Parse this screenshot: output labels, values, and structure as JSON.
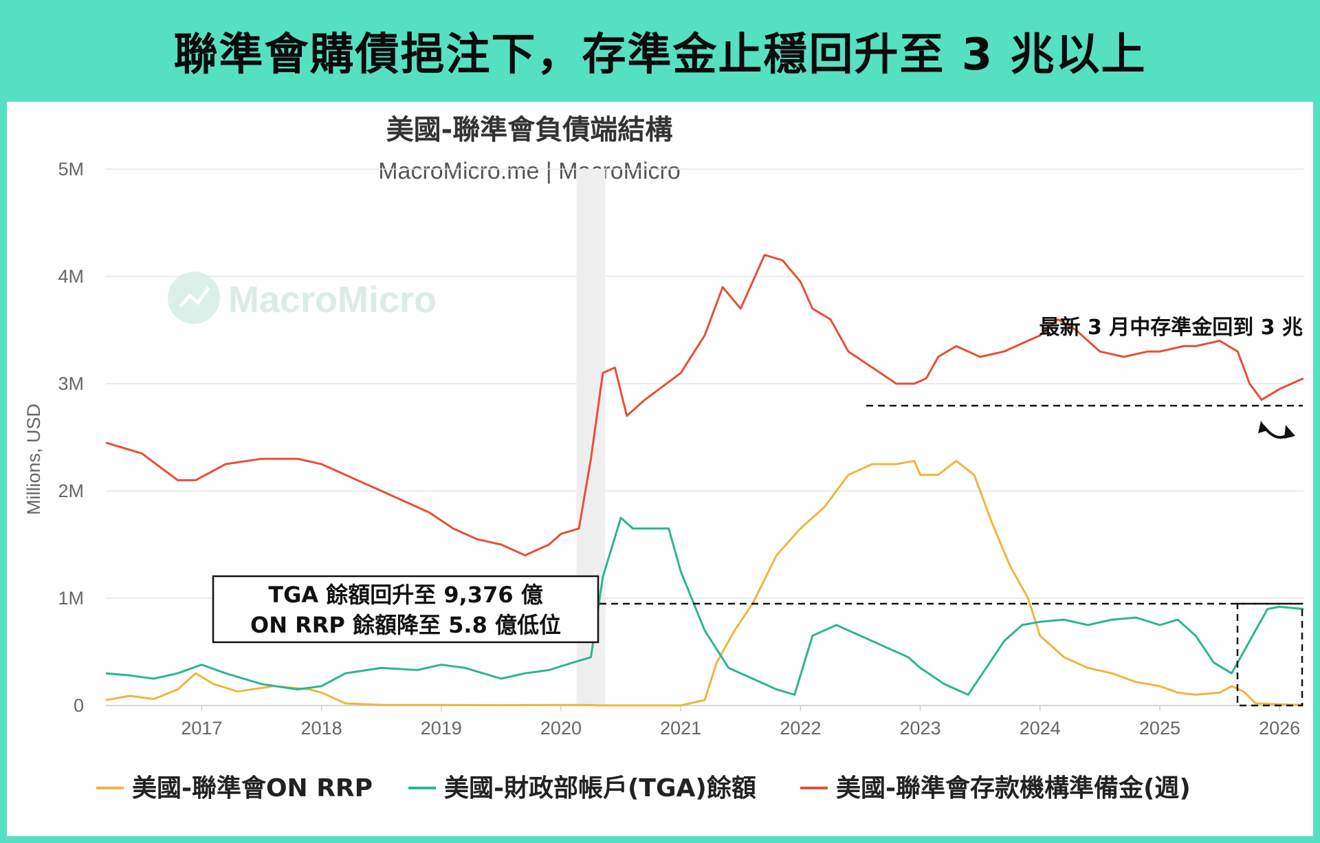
{
  "banner_title": "聯準會購債挹注下，存準金止穩回升至 3 兆以上",
  "chart_data": {
    "type": "line",
    "title": "美國-聯準會負債端結構",
    "subtitle": "MacroMicro.me | MacroMicro",
    "watermark": "MacroMicro",
    "ylabel": "Millions, USD",
    "ylim": [
      0,
      5000000
    ],
    "y_ticks": [
      {
        "value": 0,
        "label": "0"
      },
      {
        "value": 1000000,
        "label": "1M"
      },
      {
        "value": 2000000,
        "label": "2M"
      },
      {
        "value": 3000000,
        "label": "3M"
      },
      {
        "value": 4000000,
        "label": "4M"
      },
      {
        "value": 5000000,
        "label": "5M"
      }
    ],
    "xlim": [
      2016.2,
      2026.2
    ],
    "x_ticks": [
      "2017",
      "2018",
      "2019",
      "2020",
      "2021",
      "2022",
      "2023",
      "2024",
      "2025",
      "2026"
    ],
    "recession_band": [
      2020.13,
      2020.37
    ],
    "grid": "horizontal",
    "legend_position": "bottom",
    "series": [
      {
        "name": "美國-聯準會ON RRP",
        "color": "#f2b43c",
        "x": [
          2016.2,
          2016.4,
          2016.6,
          2016.8,
          2016.95,
          2017.1,
          2017.3,
          2017.6,
          2017.9,
          2018.0,
          2018.2,
          2018.5,
          2019.0,
          2019.5,
          2020.0,
          2020.2,
          2020.3,
          2020.5,
          2021.0,
          2021.2,
          2021.3,
          2021.45,
          2021.6,
          2021.8,
          2022.0,
          2022.2,
          2022.4,
          2022.6,
          2022.8,
          2022.95,
          2023.0,
          2023.15,
          2023.3,
          2023.45,
          2023.6,
          2023.75,
          2023.9,
          2024.0,
          2024.2,
          2024.4,
          2024.6,
          2024.8,
          2025.0,
          2025.15,
          2025.3,
          2025.5,
          2025.6,
          2025.7,
          2025.8,
          2026.0,
          2026.2
        ],
        "values": [
          50000,
          90000,
          60000,
          150000,
          300000,
          200000,
          130000,
          180000,
          150000,
          120000,
          20000,
          5000,
          5000,
          3000,
          5000,
          5000,
          2000,
          500,
          500,
          50000,
          400000,
          700000,
          950000,
          1400000,
          1650000,
          1850000,
          2150000,
          2250000,
          2250000,
          2280000,
          2150000,
          2150000,
          2280000,
          2150000,
          1700000,
          1300000,
          1000000,
          650000,
          450000,
          350000,
          300000,
          220000,
          180000,
          120000,
          100000,
          120000,
          180000,
          130000,
          20000,
          10000,
          5000
        ]
      },
      {
        "name": "美國-財政部帳戶(TGA)餘額",
        "color": "#2bb592",
        "x": [
          2016.2,
          2016.4,
          2016.6,
          2016.8,
          2017.0,
          2017.2,
          2017.5,
          2017.8,
          2018.0,
          2018.2,
          2018.5,
          2018.8,
          2019.0,
          2019.2,
          2019.5,
          2019.7,
          2019.9,
          2020.1,
          2020.25,
          2020.35,
          2020.5,
          2020.6,
          2020.9,
          2021.0,
          2021.2,
          2021.4,
          2021.6,
          2021.8,
          2021.95,
          2022.1,
          2022.3,
          2022.5,
          2022.7,
          2022.9,
          2023.0,
          2023.2,
          2023.4,
          2023.55,
          2023.7,
          2023.85,
          2024.0,
          2024.2,
          2024.4,
          2024.6,
          2024.8,
          2025.0,
          2025.15,
          2025.3,
          2025.45,
          2025.6,
          2025.75,
          2025.9,
          2026.0,
          2026.2
        ],
        "values": [
          300000,
          280000,
          250000,
          300000,
          380000,
          300000,
          200000,
          150000,
          180000,
          300000,
          350000,
          330000,
          380000,
          350000,
          250000,
          300000,
          330000,
          400000,
          450000,
          1200000,
          1750000,
          1650000,
          1650000,
          1250000,
          700000,
          350000,
          250000,
          150000,
          100000,
          650000,
          750000,
          650000,
          550000,
          450000,
          350000,
          200000,
          100000,
          350000,
          600000,
          750000,
          780000,
          800000,
          750000,
          800000,
          820000,
          750000,
          800000,
          650000,
          400000,
          300000,
          600000,
          900000,
          920000,
          900000
        ]
      },
      {
        "name": "美國-聯準會存款機構準備金(週)",
        "color": "#e84e35",
        "x": [
          2016.2,
          2016.5,
          2016.8,
          2016.95,
          2017.2,
          2017.5,
          2017.8,
          2018.0,
          2018.3,
          2018.6,
          2018.9,
          2019.1,
          2019.3,
          2019.5,
          2019.7,
          2019.9,
          2020.0,
          2020.15,
          2020.25,
          2020.35,
          2020.45,
          2020.55,
          2020.7,
          2021.0,
          2021.2,
          2021.35,
          2021.5,
          2021.7,
          2021.85,
          2022.0,
          2022.1,
          2022.25,
          2022.4,
          2022.6,
          2022.8,
          2022.95,
          2023.05,
          2023.15,
          2023.3,
          2023.5,
          2023.7,
          2023.9,
          2024.0,
          2024.15,
          2024.3,
          2024.5,
          2024.7,
          2024.9,
          2025.0,
          2025.2,
          2025.3,
          2025.5,
          2025.65,
          2025.75,
          2025.85,
          2026.0,
          2026.2
        ],
        "values": [
          2450000,
          2350000,
          2100000,
          2100000,
          2250000,
          2300000,
          2300000,
          2250000,
          2100000,
          1950000,
          1800000,
          1650000,
          1550000,
          1500000,
          1400000,
          1500000,
          1600000,
          1650000,
          2300000,
          3100000,
          3150000,
          2700000,
          2850000,
          3100000,
          3450000,
          3900000,
          3700000,
          4200000,
          4150000,
          3950000,
          3700000,
          3600000,
          3300000,
          3150000,
          3000000,
          3000000,
          3050000,
          3250000,
          3350000,
          3250000,
          3300000,
          3400000,
          3450000,
          3600000,
          3500000,
          3300000,
          3250000,
          3300000,
          3300000,
          3350000,
          3350000,
          3400000,
          3300000,
          3000000,
          2850000,
          2950000,
          3050000
        ]
      }
    ],
    "annotations": {
      "reserves_note": "最新 3 月中存準金回到 3 兆",
      "box_line1": "TGA 餘額回升至 9,376 億",
      "box_line2": "ON RRP 餘額降至 5.8 億低位"
    }
  }
}
